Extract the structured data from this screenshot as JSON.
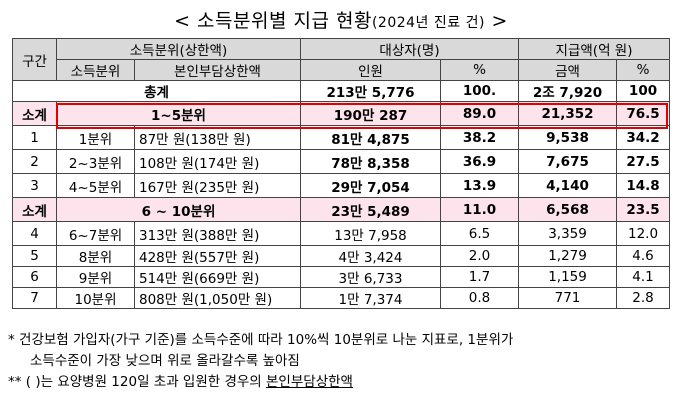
{
  "title": {
    "main": "< 소득분위별 지급 현황",
    "sub": "(2024년 진료 건)",
    "close": " >"
  },
  "header": {
    "col_group": "구간",
    "income_group": "소득분위(상한액)",
    "income_decile": "소득분위",
    "copay_cap": "본인부담상한액",
    "recipients_group": "대상자(명)",
    "recipients_people": "인원",
    "recipients_pct": "%",
    "payment_group": "지급액(억 원)",
    "payment_amount": "금액",
    "payment_pct": "%"
  },
  "total": {
    "label": "총계",
    "people": "213만 5,776",
    "people_pct": "100.",
    "amount": "2조 7,920",
    "amount_pct": "100"
  },
  "rows": [
    {
      "section": "소계",
      "range": "1~5분위",
      "people": "190만 287",
      "people_pct": "89.0",
      "amount": "21,352",
      "amount_pct": "76.5"
    },
    {
      "section": "1",
      "decile": "1분위",
      "cap": "87만 원(138만 원)",
      "people": "81만 4,875",
      "people_pct": "38.2",
      "amount": "9,538",
      "amount_pct": "34.2"
    },
    {
      "section": "2",
      "decile": "2~3분위",
      "cap": "108만 원(174만 원)",
      "people": "78만 8,358",
      "people_pct": "36.9",
      "amount": "7,675",
      "amount_pct": "27.5"
    },
    {
      "section": "3",
      "decile": "4~5분위",
      "cap": "167만 원(235만 원)",
      "people": "29만 7,054",
      "people_pct": "13.9",
      "amount": "4,140",
      "amount_pct": "14.8"
    },
    {
      "section": "소계",
      "range": "6 ~ 10분위",
      "people": "23만 5,489",
      "people_pct": "11.0",
      "amount": "6,568",
      "amount_pct": "23.5"
    },
    {
      "section": "4",
      "decile": "6~7분위",
      "cap": "313만 원(388만 원)",
      "people": "13만 7,958",
      "people_pct": "6.5",
      "amount": "3,359",
      "amount_pct": "12.0"
    },
    {
      "section": "5",
      "decile": "8분위",
      "cap": "428만 원(557만 원)",
      "people": "4만 3,424",
      "people_pct": "2.0",
      "amount": "1,279",
      "amount_pct": "4.6"
    },
    {
      "section": "6",
      "decile": "9분위",
      "cap": "514만 원(669만 원)",
      "people": "3만 6,733",
      "people_pct": "1.7",
      "amount": "1,159",
      "amount_pct": "4.1"
    },
    {
      "section": "7",
      "decile": "10분위",
      "cap": "808만 원(1,050만 원)",
      "people": "1만 7,374",
      "people_pct": "0.8",
      "amount": "771",
      "amount_pct": "2.8"
    }
  ],
  "notes": {
    "n1_line1": "*  건강보험 가입자(가구 기준)를 소득수준에 따라 10%씩 10분위로 나눈 지표로, 1분위가",
    "n1_line2": "소득수준이 가장 낮으며 위로 올라갈수록 높아짐",
    "n2_prefix": "** (  )는 요양병원 120일 초과 입원한 경우의 ",
    "n2_underlined": "본인부담상한액"
  },
  "colors": {
    "header_bg": "#d9d9d9",
    "subtotal_bg": "#fde4ec",
    "highlight_border": "#e30000"
  }
}
